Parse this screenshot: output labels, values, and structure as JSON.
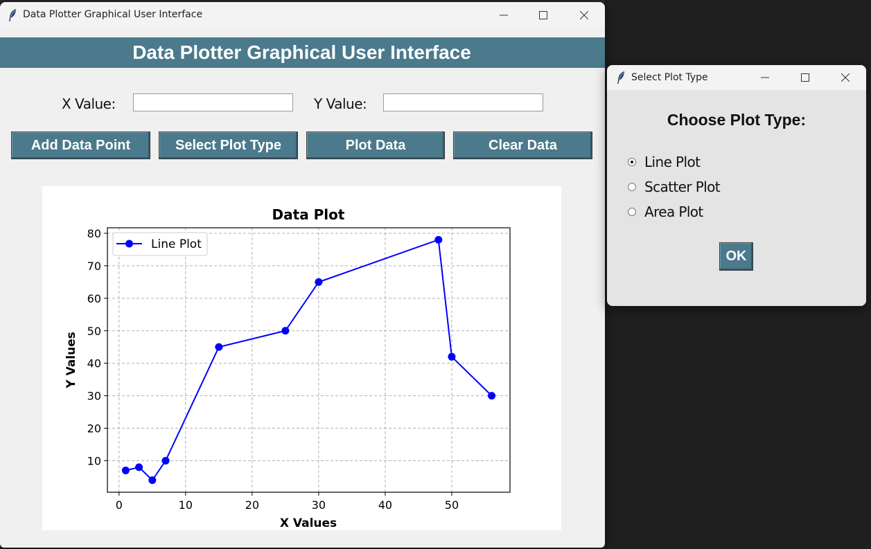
{
  "main_window": {
    "title": "Data Plotter Graphical User Interface",
    "header": "Data Plotter Graphical User Interface",
    "x_label": "X Value:",
    "y_label": "Y Value:",
    "x_value": "",
    "y_value": "",
    "buttons": {
      "add": "Add Data Point",
      "select": "Select Plot Type",
      "plot": "Plot Data",
      "clear": "Clear Data"
    },
    "accent_color": "#4a7a8c"
  },
  "dialog": {
    "title": "Select Plot Type",
    "heading": "Choose Plot Type:",
    "options": [
      "Line Plot",
      "Scatter Plot",
      "Area Plot"
    ],
    "selected": "Line Plot",
    "ok_label": "OK"
  },
  "chart_data": {
    "type": "line",
    "title": "Data Plot",
    "xlabel": "X Values",
    "ylabel": "Y Values",
    "xlim": [
      -1.75,
      58.75
    ],
    "ylim": [
      0.3,
      81.7
    ],
    "xticks": [
      0,
      10,
      20,
      30,
      40,
      50
    ],
    "yticks": [
      10,
      20,
      30,
      40,
      50,
      60,
      70,
      80
    ],
    "grid": true,
    "legend_position": "upper-left",
    "color": "#0000ff",
    "series": [
      {
        "name": "Line Plot",
        "x": [
          1,
          3,
          5,
          7,
          15,
          25,
          30,
          48,
          50,
          56
        ],
        "y": [
          7,
          8,
          4,
          10,
          45,
          50,
          65,
          78,
          42,
          30
        ]
      }
    ]
  }
}
